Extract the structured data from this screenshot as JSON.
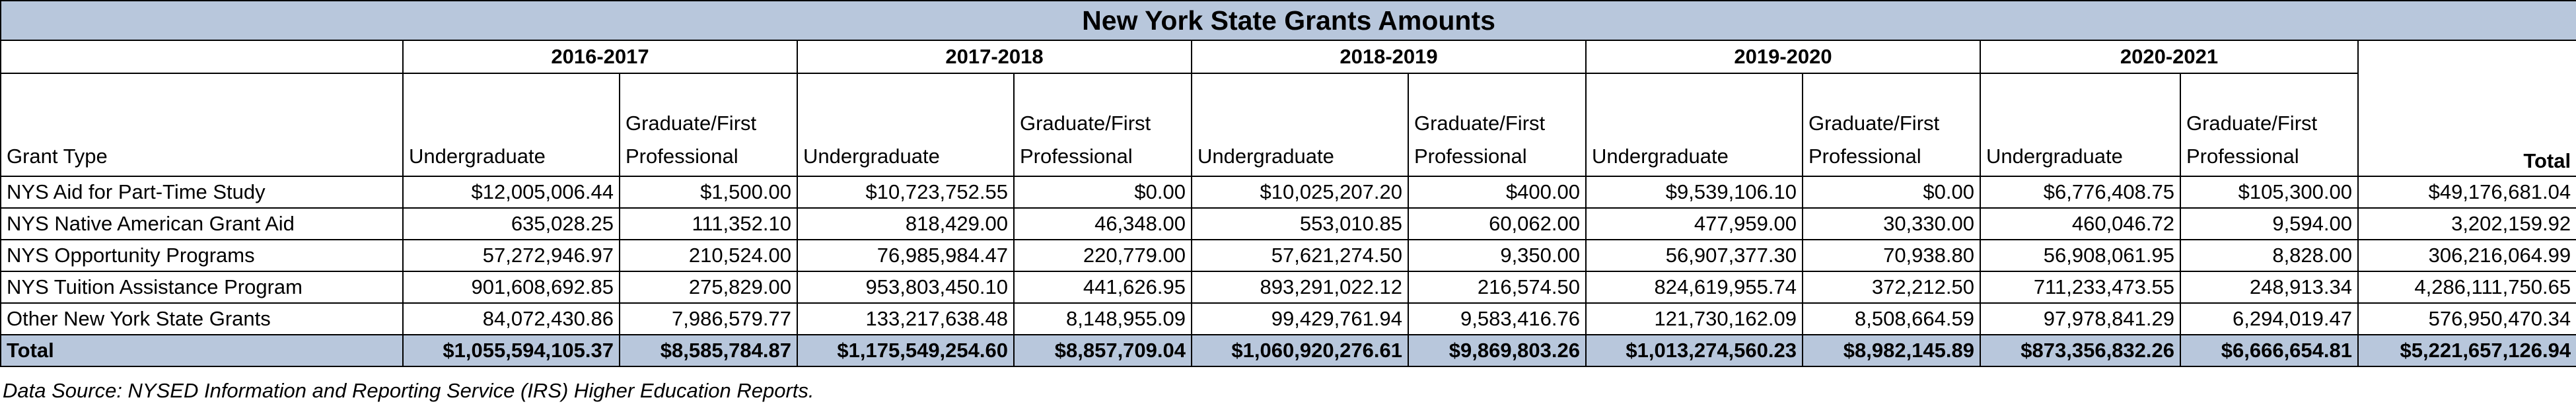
{
  "title": "New York State Grants Amounts",
  "years": [
    "2016-2017",
    "2017-2018",
    "2018-2019",
    "2019-2020",
    "2020-2021"
  ],
  "columns": [
    "Grant Type",
    "Undergraduate",
    "Graduate/First Professional",
    "Undergraduate",
    "Graduate/First Professional",
    "Undergraduate",
    "Graduate/First Professional",
    "Undergraduate",
    "Graduate/First Professional",
    "Undergraduate",
    "Graduate/First Professional",
    "Total"
  ],
  "rows": [
    [
      "NYS Aid for Part-Time Study",
      "$12,005,006.44",
      "$1,500.00",
      "$10,723,752.55",
      "$0.00",
      "$10,025,207.20",
      "$400.00",
      "$9,539,106.10",
      "$0.00",
      "$6,776,408.75",
      "$105,300.00",
      "$49,176,681.04"
    ],
    [
      "NYS Native American Grant Aid",
      "635,028.25",
      "111,352.10",
      "818,429.00",
      "46,348.00",
      "553,010.85",
      "60,062.00",
      "477,959.00",
      "30,330.00",
      "460,046.72",
      "9,594.00",
      "3,202,159.92"
    ],
    [
      "NYS Opportunity Programs",
      "57,272,946.97",
      "210,524.00",
      "76,985,984.47",
      "220,779.00",
      "57,621,274.50",
      "9,350.00",
      "56,907,377.30",
      "70,938.80",
      "56,908,061.95",
      "8,828.00",
      "306,216,064.99"
    ],
    [
      "NYS Tuition Assistance Program",
      "901,608,692.85",
      "275,829.00",
      "953,803,450.10",
      "441,626.95",
      "893,291,022.12",
      "216,574.50",
      "824,619,955.74",
      "372,212.50",
      "711,233,473.55",
      "248,913.34",
      "4,286,111,750.65"
    ],
    [
      "Other New York State Grants",
      "84,072,430.86",
      "7,986,579.77",
      "133,217,638.48",
      "8,148,955.09",
      "99,429,761.94",
      "9,583,416.76",
      "121,730,162.09",
      "8,508,664.59",
      "97,978,841.29",
      "6,294,019.47",
      "576,950,470.34"
    ]
  ],
  "total_row": [
    "Total",
    "$1,055,594,105.37",
    "$8,585,784.87",
    "$1,175,549,254.60",
    "$8,857,709.04",
    "$1,060,920,276.61",
    "$9,869,803.26",
    "$1,013,274,560.23",
    "$8,982,145.89",
    "$873,356,832.26",
    "$6,666,654.81",
    "$5,221,657,126.94"
  ],
  "footnote": "Data Source: NYSED Information and Reporting Service (IRS) Higher Education Reports."
}
